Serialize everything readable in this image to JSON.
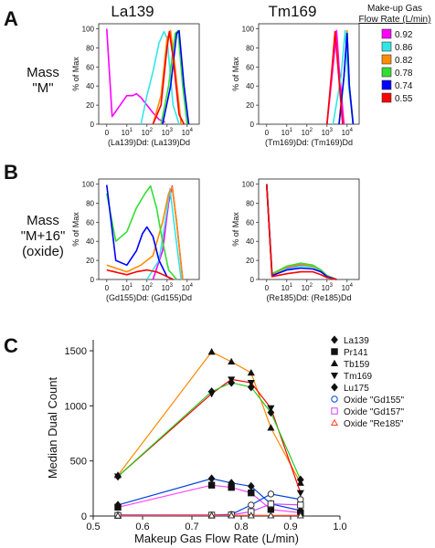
{
  "panels": {
    "A": "A",
    "B": "B",
    "C": "C"
  },
  "columns": {
    "left": "La139",
    "right": "Tm169"
  },
  "rows": {
    "A_label": [
      "Mass",
      "\"M\""
    ],
    "B_label": [
      "Mass",
      "\"M+16\"",
      "(oxide)"
    ]
  },
  "histogram_ylabel": "% of Max",
  "histogram_yticks": [
    "0",
    "20",
    "40",
    "60",
    "80",
    "100"
  ],
  "histogram_xticks": [
    "0",
    "10",
    "10",
    "10",
    "10"
  ],
  "histogram_xtick_exponents": [
    "",
    "1",
    "2",
    "3",
    "4"
  ],
  "legend": {
    "title": [
      "Make-up Gas",
      "Flow Rate (L/min)"
    ],
    "items": [
      {
        "value": "0.92",
        "color": "#ff00ff"
      },
      {
        "value": "0.86",
        "color": "#33e6e6"
      },
      {
        "value": "0.82",
        "color": "#ff8c00"
      },
      {
        "value": "0.78",
        "color": "#33dd33"
      },
      {
        "value": "0.74",
        "color": "#0000ff"
      },
      {
        "value": "0.55",
        "color": "#ff0000"
      }
    ]
  },
  "chart_data": [
    {
      "type": "line",
      "panel": "A-left",
      "xlabel": "(La139)Dd: (La139)Dd",
      "ylabel": "% of Max",
      "x_scale": "log",
      "ylim": [
        0,
        100
      ],
      "series": [
        {
          "name": "0.92",
          "color": "#ff00ff",
          "points": [
            [
              0,
              100
            ],
            [
              0.3,
              8
            ],
            [
              1,
              30
            ],
            [
              2,
              30
            ],
            [
              3,
              32
            ],
            [
              5,
              28
            ],
            [
              10,
              20
            ],
            [
              20,
              12
            ],
            [
              40,
              5
            ],
            [
              80,
              2
            ]
          ]
        },
        {
          "name": "0.86",
          "color": "#33e6e6",
          "points": [
            [
              5,
              0
            ],
            [
              10,
              30
            ],
            [
              20,
              55
            ],
            [
              40,
              85
            ],
            [
              70,
              97
            ],
            [
              100,
              90
            ],
            [
              200,
              20
            ],
            [
              400,
              0
            ]
          ]
        },
        {
          "name": "0.82",
          "color": "#ff8c00",
          "points": [
            [
              20,
              0
            ],
            [
              50,
              30
            ],
            [
              100,
              90
            ],
            [
              150,
              98
            ],
            [
              250,
              60
            ],
            [
              500,
              0
            ]
          ]
        },
        {
          "name": "0.78",
          "color": "#33dd33",
          "points": [
            [
              50,
              0
            ],
            [
              120,
              40
            ],
            [
              250,
              95
            ],
            [
              350,
              98
            ],
            [
              600,
              40
            ],
            [
              1000,
              0
            ]
          ]
        },
        {
          "name": "0.74",
          "color": "#0000ff",
          "points": [
            [
              60,
              0
            ],
            [
              150,
              40
            ],
            [
              300,
              95
            ],
            [
              400,
              98
            ],
            [
              700,
              40
            ],
            [
              1200,
              0
            ]
          ]
        },
        {
          "name": "0.55",
          "color": "#ff0000",
          "points": [
            [
              20,
              0
            ],
            [
              50,
              20
            ],
            [
              100,
              80
            ],
            [
              130,
              97
            ],
            [
              200,
              70
            ],
            [
              400,
              10
            ],
            [
              700,
              0
            ]
          ]
        }
      ]
    },
    {
      "type": "line",
      "panel": "A-right",
      "xlabel": "(Tm169)Dd: (Tm169)Dd",
      "ylabel": "% of Max",
      "x_scale": "log",
      "ylim": [
        0,
        100
      ],
      "series": [
        {
          "name": "0.92",
          "color": "#ff00ff",
          "points": [
            [
              100,
              0
            ],
            [
              200,
              60
            ],
            [
              300,
              98
            ],
            [
              400,
              60
            ],
            [
              700,
              0
            ]
          ]
        },
        {
          "name": "0.86",
          "color": "#33e6e6",
          "points": [
            [
              200,
              0
            ],
            [
              500,
              50
            ],
            [
              800,
              98
            ],
            [
              1200,
              40
            ],
            [
              2000,
              0
            ]
          ]
        },
        {
          "name": "0.82",
          "color": "#ff8c00",
          "points": [
            [
              400,
              0
            ],
            [
              700,
              50
            ],
            [
              1000,
              98
            ],
            [
              1300,
              40
            ],
            [
              2000,
              0
            ]
          ]
        },
        {
          "name": "0.78",
          "color": "#33dd33",
          "points": [
            [
              400,
              0
            ],
            [
              700,
              50
            ],
            [
              1000,
              96
            ],
            [
              1300,
              40
            ],
            [
              2000,
              0
            ]
          ]
        },
        {
          "name": "0.74",
          "color": "#0000ff",
          "points": [
            [
              400,
              0
            ],
            [
              700,
              50
            ],
            [
              1000,
              95
            ],
            [
              1300,
              40
            ],
            [
              2000,
              0
            ]
          ]
        },
        {
          "name": "0.55",
          "color": "#ff0000",
          "points": [
            [
              100,
              0
            ],
            [
              180,
              60
            ],
            [
              250,
              97
            ],
            [
              350,
              60
            ],
            [
              600,
              0
            ]
          ]
        }
      ]
    },
    {
      "type": "line",
      "panel": "B-left",
      "xlabel": "(Gd155)Dd: (Gd155)Dd",
      "ylabel": "% of Max",
      "x_scale": "log",
      "ylim": [
        0,
        100
      ],
      "series": [
        {
          "name": "0.92",
          "color": "#ff00ff",
          "points": [
            [
              20,
              0
            ],
            [
              60,
              30
            ],
            [
              120,
              80
            ],
            [
              180,
              98
            ],
            [
              300,
              60
            ],
            [
              600,
              0
            ]
          ]
        },
        {
          "name": "0.86",
          "color": "#33e6e6",
          "points": [
            [
              10,
              0
            ],
            [
              40,
              20
            ],
            [
              80,
              60
            ],
            [
              140,
              95
            ],
            [
              250,
              50
            ],
            [
              500,
              0
            ]
          ]
        },
        {
          "name": "0.82",
          "color": "#ff8c00",
          "points": [
            [
              0,
              15
            ],
            [
              1,
              8
            ],
            [
              5,
              15
            ],
            [
              20,
              25
            ],
            [
              60,
              60
            ],
            [
              120,
              90
            ],
            [
              180,
              97
            ],
            [
              300,
              60
            ],
            [
              600,
              0
            ]
          ]
        },
        {
          "name": "0.78",
          "color": "#33dd33",
          "points": [
            [
              0,
              90
            ],
            [
              0.5,
              40
            ],
            [
              1,
              50
            ],
            [
              3,
              75
            ],
            [
              8,
              90
            ],
            [
              15,
              98
            ],
            [
              30,
              75
            ],
            [
              60,
              40
            ],
            [
              120,
              10
            ],
            [
              300,
              0
            ]
          ]
        },
        {
          "name": "0.74",
          "color": "#0000ff",
          "points": [
            [
              0,
              99
            ],
            [
              0.5,
              20
            ],
            [
              1,
              15
            ],
            [
              3,
              30
            ],
            [
              6,
              48
            ],
            [
              10,
              55
            ],
            [
              20,
              45
            ],
            [
              40,
              20
            ],
            [
              100,
              3
            ],
            [
              200,
              0
            ]
          ]
        },
        {
          "name": "0.55",
          "color": "#ff0000",
          "points": [
            [
              0,
              10
            ],
            [
              1,
              5
            ],
            [
              3,
              8
            ],
            [
              10,
              10
            ],
            [
              30,
              8
            ],
            [
              80,
              4
            ],
            [
              200,
              0
            ]
          ]
        }
      ]
    },
    {
      "type": "line",
      "panel": "B-right",
      "xlabel": "(Re185)Dd: (Re185)Dd",
      "ylabel": "% of Max",
      "x_scale": "log",
      "ylim": [
        0,
        100
      ],
      "series": [
        {
          "name": "0.92",
          "color": "#ff00ff",
          "points": [
            [
              0,
              100
            ],
            [
              0.3,
              5
            ],
            [
              1,
              12
            ],
            [
              5,
              15
            ],
            [
              20,
              14
            ],
            [
              50,
              10
            ],
            [
              100,
              4
            ],
            [
              300,
              0
            ]
          ]
        },
        {
          "name": "0.86",
          "color": "#33e6e6",
          "points": [
            [
              0,
              100
            ],
            [
              0.3,
              5
            ],
            [
              1,
              11
            ],
            [
              5,
              14
            ],
            [
              20,
              13
            ],
            [
              50,
              9
            ],
            [
              100,
              3
            ],
            [
              300,
              0
            ]
          ]
        },
        {
          "name": "0.82",
          "color": "#ff8c00",
          "points": [
            [
              0,
              100
            ],
            [
              0.3,
              5
            ],
            [
              1,
              13
            ],
            [
              5,
              16
            ],
            [
              20,
              14
            ],
            [
              50,
              10
            ],
            [
              100,
              4
            ],
            [
              300,
              0
            ]
          ]
        },
        {
          "name": "0.78",
          "color": "#33dd33",
          "points": [
            [
              0,
              100
            ],
            [
              0.3,
              6
            ],
            [
              1,
              14
            ],
            [
              5,
              17
            ],
            [
              20,
              15
            ],
            [
              50,
              10
            ],
            [
              100,
              4
            ],
            [
              300,
              0
            ]
          ]
        },
        {
          "name": "0.74",
          "color": "#0000ff",
          "points": [
            [
              0,
              100
            ],
            [
              0.3,
              4
            ],
            [
              1,
              10
            ],
            [
              5,
              12
            ],
            [
              20,
              11
            ],
            [
              50,
              8
            ],
            [
              100,
              3
            ],
            [
              300,
              0
            ]
          ]
        },
        {
          "name": "0.55",
          "color": "#ff0000",
          "points": [
            [
              0,
              100
            ],
            [
              0.3,
              3
            ],
            [
              1,
              6
            ],
            [
              5,
              8
            ],
            [
              20,
              8
            ],
            [
              50,
              5
            ],
            [
              100,
              2
            ],
            [
              300,
              0
            ]
          ]
        }
      ]
    },
    {
      "type": "line",
      "panel": "C",
      "xlabel": "Makeup Gas Flow Rate (L/min)",
      "ylabel": "Median Dual Count",
      "xlim": [
        0.5,
        1.0
      ],
      "ylim": [
        0,
        1600
      ],
      "xticks": [
        "0.5",
        "0.6",
        "0.7",
        "0.8",
        "0.9",
        "1.0"
      ],
      "yticks": [
        "0",
        "500",
        "1000",
        "1500"
      ],
      "x": [
        0.55,
        0.74,
        0.78,
        0.82,
        0.86,
        0.92
      ],
      "series": [
        {
          "name": "La139",
          "color": "#0044dd",
          "marker": "diamond",
          "filled": true,
          "values": [
            100,
            340,
            300,
            270,
            110,
            50
          ]
        },
        {
          "name": "Pr141",
          "color": "#ff44ff",
          "marker": "square",
          "filled": true,
          "values": [
            80,
            280,
            260,
            210,
            60,
            30
          ]
        },
        {
          "name": "Tb159",
          "color": "#ff8800",
          "marker": "triangle-up",
          "filled": true,
          "values": [
            370,
            1490,
            1400,
            1300,
            800,
            300
          ]
        },
        {
          "name": "Tm169",
          "color": "#ff0000",
          "marker": "triangle-down",
          "filled": true,
          "values": [
            360,
            1110,
            1240,
            1210,
            980,
            210
          ]
        },
        {
          "name": "Lu175",
          "color": "#22cc22",
          "marker": "diamond",
          "filled": true,
          "values": [
            360,
            1130,
            1210,
            1170,
            940,
            330
          ]
        },
        {
          "name": "Oxide \"Gd155\"",
          "color": "#0044dd",
          "marker": "circle",
          "filled": false,
          "values": [
            10,
            10,
            15,
            100,
            200,
            150
          ]
        },
        {
          "name": "Oxide \"Gd157\"",
          "color": "#cc44ff",
          "marker": "square",
          "filled": false,
          "values": [
            5,
            8,
            10,
            40,
            110,
            100
          ]
        },
        {
          "name": "Oxide \"Re185\"",
          "color": "#ff4422",
          "marker": "triangle-up",
          "filled": false,
          "values": [
            3,
            5,
            5,
            5,
            5,
            5
          ]
        }
      ]
    }
  ]
}
